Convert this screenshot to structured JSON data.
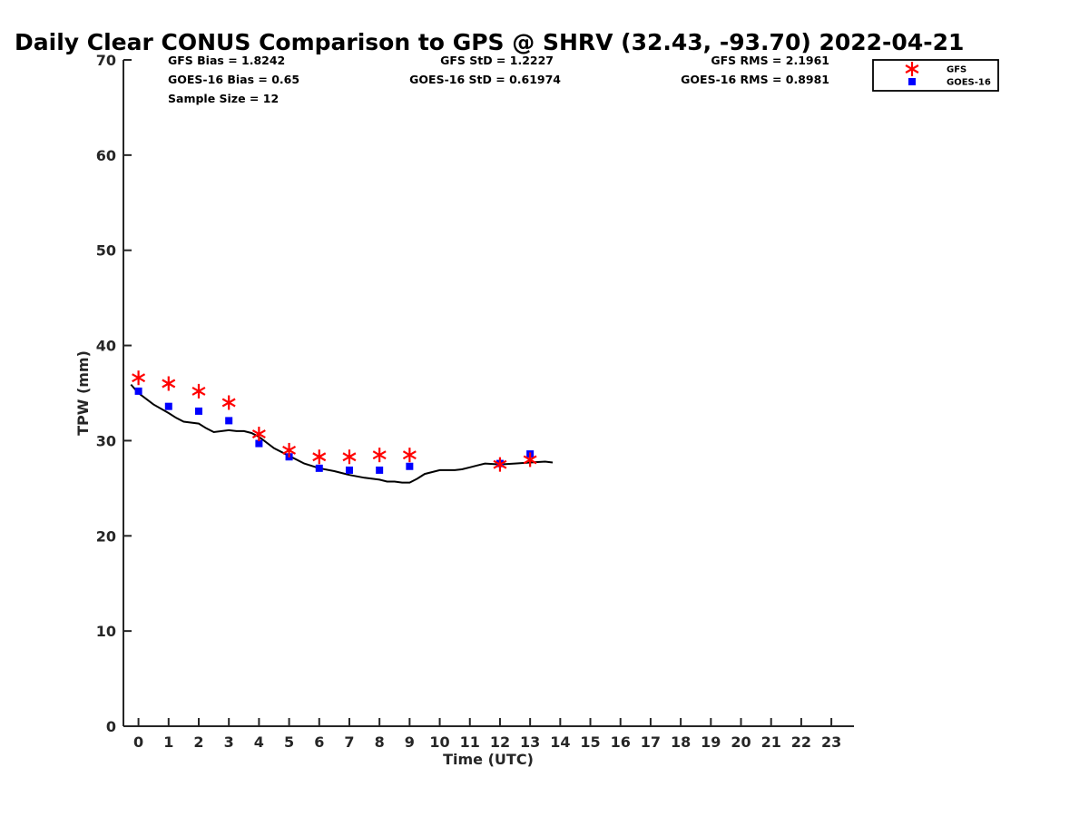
{
  "chart_data": {
    "type": "scatter",
    "title": "Daily Clear CONUS Comparison to GPS @ SHRV (32.43, -93.70) 2022-04-21",
    "xlabel": "Time (UTC)",
    "ylabel": "TPW (mm)",
    "xlim": [
      -0.5,
      23.75
    ],
    "ylim": [
      0,
      70
    ],
    "x_ticks": [
      0,
      1,
      2,
      3,
      4,
      5,
      6,
      7,
      8,
      9,
      10,
      11,
      12,
      13,
      14,
      15,
      16,
      17,
      18,
      19,
      20,
      21,
      22,
      23
    ],
    "y_ticks": [
      0,
      10,
      20,
      30,
      40,
      50,
      60,
      70
    ],
    "grid": false,
    "legend_position": "top-right",
    "stats": {
      "gfs_bias": "GFS Bias = 1.8242",
      "goes_bias": "GOES-16 Bias = 0.65",
      "sample_size": "Sample Size = 12",
      "gfs_std": "GFS StD = 1.2227",
      "goes_std": "GOES-16 StD = 0.61974",
      "gfs_rms": "GFS RMS = 2.1961",
      "goes_rms": "GOES-16 RMS = 0.8981"
    },
    "series": [
      {
        "name": "GFS",
        "marker": "asterisk",
        "color": "#ff0000",
        "x": [
          0,
          1,
          2,
          3,
          4,
          5,
          6,
          7,
          8,
          9,
          12,
          13
        ],
        "y": [
          36.6,
          36.0,
          35.2,
          34.0,
          30.7,
          29.0,
          28.3,
          28.3,
          28.5,
          28.5,
          27.5,
          28.0
        ]
      },
      {
        "name": "GOES-16",
        "marker": "square",
        "color": "#0000ff",
        "x": [
          0,
          1,
          2,
          3,
          4,
          5,
          6,
          7,
          8,
          9,
          12,
          13
        ],
        "y": [
          35.2,
          33.6,
          33.1,
          32.1,
          29.7,
          28.3,
          27.1,
          26.9,
          26.9,
          27.3,
          27.6,
          28.6
        ]
      },
      {
        "marker": "line",
        "color": "#000000",
        "x": [
          -0.25,
          0,
          0.5,
          1,
          1.25,
          1.5,
          2,
          2.25,
          2.5,
          3,
          3.25,
          3.5,
          3.75,
          4,
          4.5,
          5,
          5.25,
          5.5,
          6,
          6.5,
          7,
          7.5,
          8,
          8.25,
          8.5,
          8.75,
          9,
          9.25,
          9.5,
          9.75,
          10,
          10.25,
          10.5,
          10.75,
          11,
          11.25,
          11.5,
          12,
          12.5,
          13,
          13.5,
          13.75
        ],
        "y": [
          35.9,
          35.0,
          33.8,
          32.9,
          32.4,
          32.0,
          31.8,
          31.3,
          30.9,
          31.1,
          31.0,
          31.0,
          30.8,
          30.4,
          29.2,
          28.4,
          28.0,
          27.6,
          27.1,
          26.8,
          26.4,
          26.1,
          25.9,
          25.7,
          25.7,
          25.6,
          25.6,
          26.0,
          26.5,
          26.7,
          26.9,
          26.9,
          26.9,
          27.0,
          27.2,
          27.4,
          27.6,
          27.5,
          27.6,
          27.7,
          27.8,
          27.7
        ]
      }
    ]
  }
}
